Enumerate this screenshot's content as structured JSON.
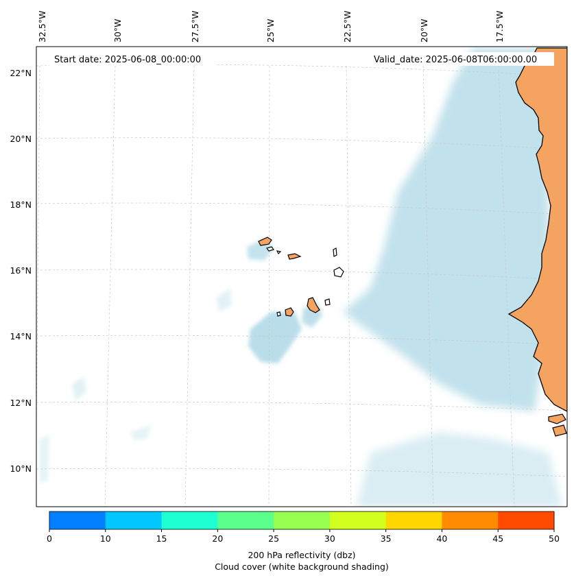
{
  "map": {
    "start_date_label": "Start date: 2025-06-08_00:00:00",
    "valid_date_label": "Valid_date: 2025-06-08T06:00:00.00",
    "lon_labels": [
      "32.5°W",
      "30°W",
      "27.5°W",
      "25°W",
      "22.5°W",
      "20°W",
      "17.5°W"
    ],
    "lat_labels": [
      "22°N",
      "20°N",
      "18°N",
      "16°N",
      "14°N",
      "12°N",
      "10°N"
    ],
    "colors": {
      "land": "#f4a460",
      "cloud": "#add8e6",
      "gridline": "#c8c8c8",
      "coastline": "#000000"
    }
  },
  "colorbar": {
    "ticks": [
      "0",
      "10",
      "15",
      "20",
      "25",
      "30",
      "35",
      "40",
      "45",
      "50"
    ],
    "colors": [
      "#0080ff",
      "#00c8ff",
      "#1effd2",
      "#5aff8c",
      "#96ff50",
      "#d2ff1e",
      "#ffd700",
      "#ff8c00",
      "#ff4b00"
    ],
    "label_line1": "200 hPa reflectivity (dbz)",
    "label_line2": "Cloud cover (white background shading)"
  }
}
